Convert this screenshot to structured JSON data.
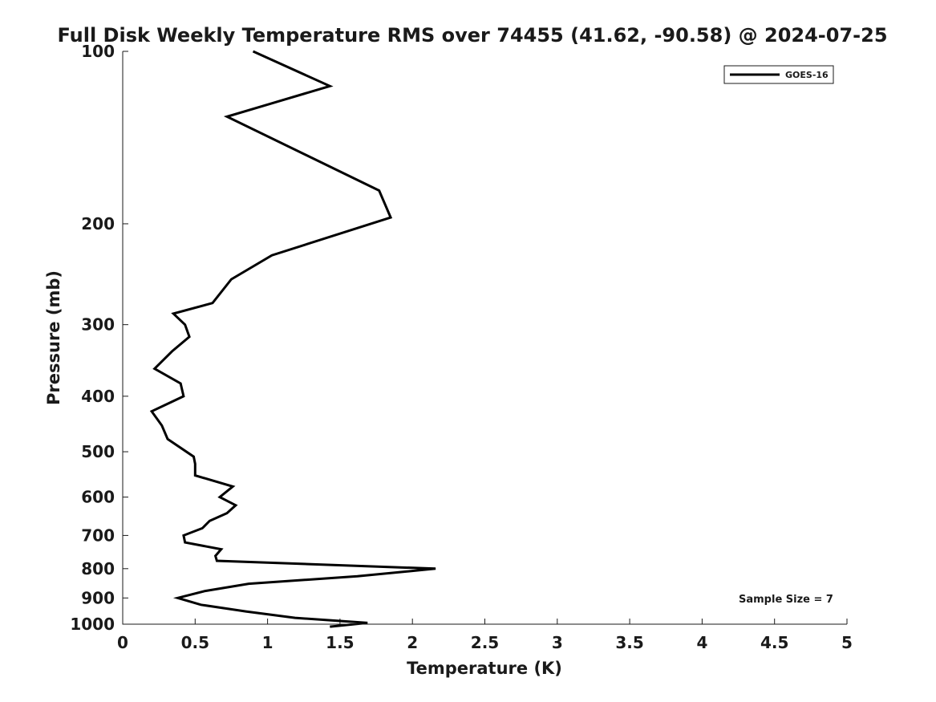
{
  "chart_data": {
    "type": "line",
    "title": "Full Disk Weekly Temperature RMS over 74455 (41.62, -90.58) @ 2024-07-25",
    "xlabel": "Temperature (K)",
    "ylabel": "Pressure (mb)",
    "xlim": [
      0,
      5
    ],
    "ylim": [
      100,
      1000
    ],
    "y_scale": "log",
    "y_reversed": true,
    "x_ticks": [
      "0",
      "0.5",
      "1",
      "1.5",
      "2",
      "2.5",
      "3",
      "3.5",
      "4",
      "4.5",
      "5"
    ],
    "y_ticks": [
      "100",
      "200",
      "300",
      "400",
      "500",
      "600",
      "700",
      "800",
      "900",
      "1000"
    ],
    "grid": false,
    "legend_position": "top-right",
    "annotation": "Sample Size = 7",
    "series": [
      {
        "name": "GOES-16",
        "color": "#000000",
        "x": [
          0.9,
          1.43,
          0.72,
          1.77,
          1.85,
          1.03,
          0.75,
          0.62,
          0.35,
          0.43,
          0.46,
          0.34,
          0.22,
          0.4,
          0.42,
          0.2,
          0.27,
          0.31,
          0.49,
          0.5,
          0.5,
          0.76,
          0.67,
          0.78,
          0.72,
          0.6,
          0.55,
          0.42,
          0.43,
          0.68,
          0.64,
          0.65,
          2.16,
          1.62,
          0.87,
          0.57,
          0.38,
          0.54,
          0.85,
          1.19,
          1.69,
          1.43
        ],
        "y": [
          100,
          115,
          130,
          175,
          195,
          227,
          250,
          275,
          287,
          300,
          315,
          334,
          358,
          380,
          400,
          425,
          450,
          475,
          510,
          525,
          550,
          575,
          600,
          620,
          640,
          660,
          680,
          700,
          720,
          740,
          760,
          775,
          800,
          825,
          850,
          875,
          900,
          925,
          950,
          975,
          995,
          1010
        ]
      }
    ]
  }
}
